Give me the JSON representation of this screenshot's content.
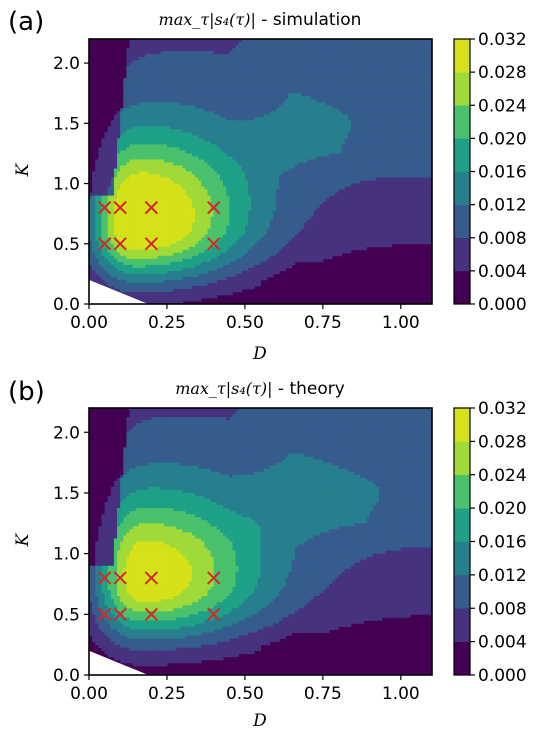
{
  "chart_data": [
    {
      "type": "heatmap",
      "subtype": "filled-contour",
      "panel_label": "(a)",
      "title_math": "max_τ|s₄(τ)|",
      "title_rest": " - simulation",
      "xlabel": "D",
      "ylabel": "K",
      "xlim": [
        0,
        1.1
      ],
      "ylim": [
        0,
        2.2
      ],
      "xticks": [
        "0.00",
        "0.25",
        "0.50",
        "0.75",
        "1.00"
      ],
      "xtick_values": [
        0,
        0.25,
        0.5,
        0.75,
        1.0
      ],
      "yticks": [
        "0.0",
        "0.5",
        "1.0",
        "1.5",
        "2.0"
      ],
      "ytick_values": [
        0,
        0.5,
        1.0,
        1.5,
        2.0
      ],
      "colorbar_ticks": [
        "0.000",
        "0.004",
        "0.008",
        "0.012",
        "0.016",
        "0.020",
        "0.024",
        "0.028",
        "0.032"
      ],
      "colorbar_levels": [
        0,
        0.004,
        0.008,
        0.012,
        0.016,
        0.02,
        0.024,
        0.028,
        0.032
      ],
      "colormap": [
        "#440154",
        "#46327e",
        "#365c8d",
        "#277f8e",
        "#1fa187",
        "#4ac16d",
        "#a0da39",
        "#d5e21a"
      ],
      "peak": {
        "D": 0.15,
        "K": 0.65,
        "value": 0.03
      },
      "markers": [
        {
          "D": 0.05,
          "K": 0.8
        },
        {
          "D": 0.1,
          "K": 0.8
        },
        {
          "D": 0.2,
          "K": 0.8
        },
        {
          "D": 0.4,
          "K": 0.8
        },
        {
          "D": 0.05,
          "K": 0.5
        },
        {
          "D": 0.1,
          "K": 0.5
        },
        {
          "D": 0.2,
          "K": 0.5
        },
        {
          "D": 0.4,
          "K": 0.5
        }
      ],
      "marker_color": "#d62728"
    },
    {
      "type": "heatmap",
      "subtype": "filled-contour",
      "panel_label": "(b)",
      "title_math": "max_τ|s₄(τ)|",
      "title_rest": " - theory",
      "xlabel": "D",
      "ylabel": "K",
      "xlim": [
        0,
        1.1
      ],
      "ylim": [
        0,
        2.2
      ],
      "xticks": [
        "0.00",
        "0.25",
        "0.50",
        "0.75",
        "1.00"
      ],
      "xtick_values": [
        0,
        0.25,
        0.5,
        0.75,
        1.0
      ],
      "yticks": [
        "0.0",
        "0.5",
        "1.0",
        "1.5",
        "2.0"
      ],
      "ytick_values": [
        0,
        0.5,
        1.0,
        1.5,
        2.0
      ],
      "colorbar_ticks": [
        "0.000",
        "0.004",
        "0.008",
        "0.012",
        "0.016",
        "0.020",
        "0.024",
        "0.028",
        "0.032"
      ],
      "colorbar_levels": [
        0,
        0.004,
        0.008,
        0.012,
        0.016,
        0.02,
        0.024,
        0.028,
        0.032
      ],
      "colormap": [
        "#440154",
        "#46327e",
        "#365c8d",
        "#277f8e",
        "#1fa187",
        "#4ac16d",
        "#a0da39",
        "#d5e21a"
      ],
      "peak": {
        "D": 0.17,
        "K": 0.75,
        "value": 0.026
      },
      "markers": [
        {
          "D": 0.05,
          "K": 0.8
        },
        {
          "D": 0.1,
          "K": 0.8
        },
        {
          "D": 0.2,
          "K": 0.8
        },
        {
          "D": 0.4,
          "K": 0.8
        },
        {
          "D": 0.05,
          "K": 0.5
        },
        {
          "D": 0.1,
          "K": 0.5
        },
        {
          "D": 0.2,
          "K": 0.5
        },
        {
          "D": 0.4,
          "K": 0.5
        }
      ],
      "marker_color": "#d62728"
    }
  ]
}
